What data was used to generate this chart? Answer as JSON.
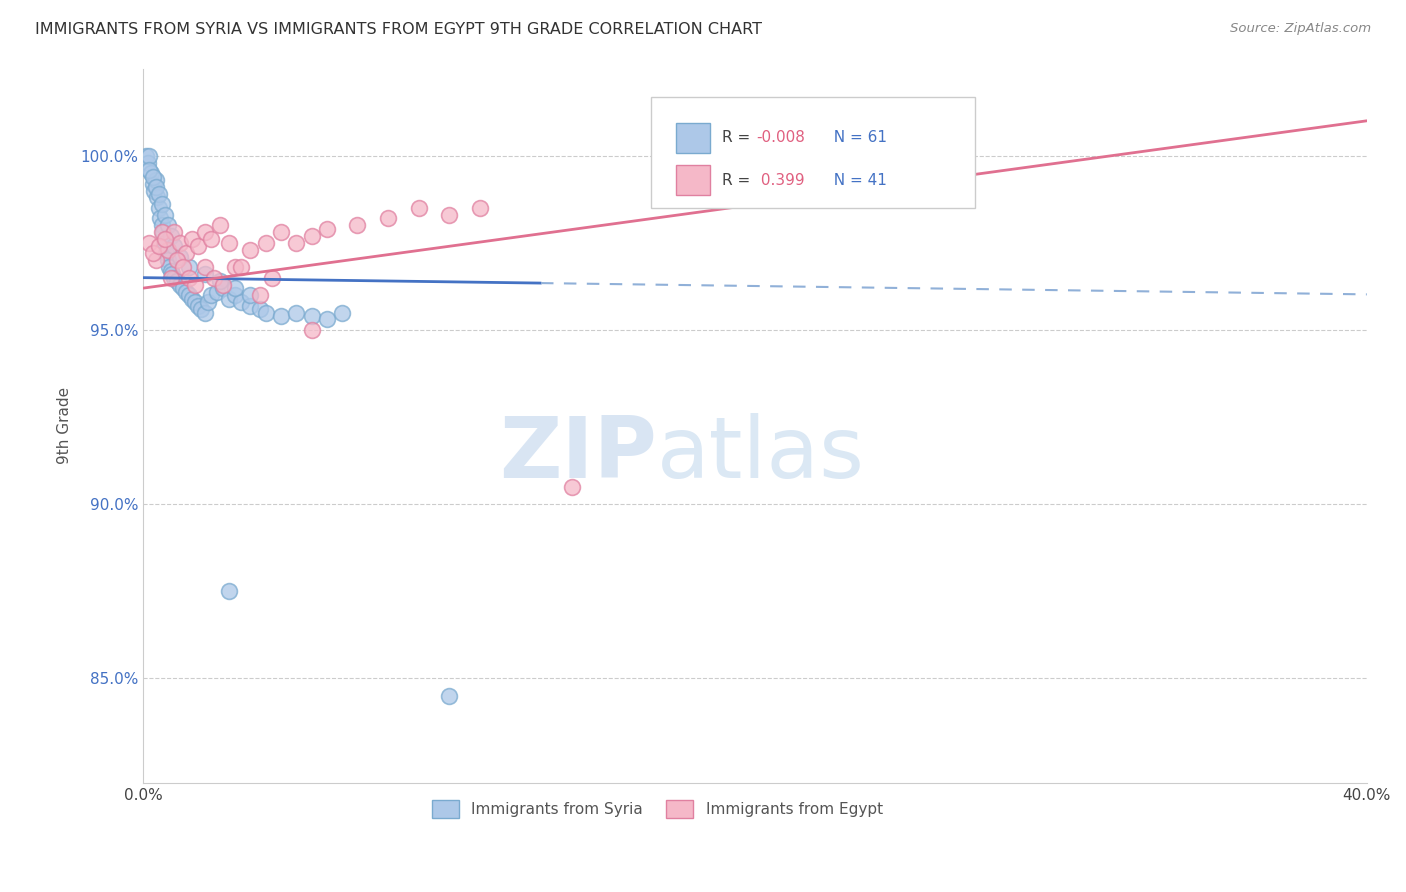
{
  "title": "IMMIGRANTS FROM SYRIA VS IMMIGRANTS FROM EGYPT 9TH GRADE CORRELATION CHART",
  "source": "Source: ZipAtlas.com",
  "ylabel": "9th Grade",
  "xlim": [
    0.0,
    40.0
  ],
  "ylim": [
    82.0,
    102.5
  ],
  "yticks": [
    85.0,
    90.0,
    95.0,
    100.0
  ],
  "xticks": [
    0.0,
    10.0,
    20.0,
    30.0,
    40.0
  ],
  "xtick_labels": [
    "0.0%",
    "",
    "",
    "",
    "40.0%"
  ],
  "syria_color": "#adc8e8",
  "egypt_color": "#f5b8c8",
  "syria_edge": "#7aaacf",
  "egypt_edge": "#e080a0",
  "trend_syria_color": "#4472c4",
  "trend_egypt_color": "#e07090",
  "dashed_line_color": "#90b0d8",
  "legend_syria_label": "Immigrants from Syria",
  "legend_egypt_label": "Immigrants from Egypt",
  "R_syria": -0.008,
  "N_syria": 61,
  "R_egypt": 0.399,
  "N_egypt": 41,
  "syria_x": [
    0.1,
    0.15,
    0.2,
    0.25,
    0.3,
    0.35,
    0.4,
    0.45,
    0.5,
    0.55,
    0.6,
    0.65,
    0.7,
    0.75,
    0.8,
    0.85,
    0.9,
    0.95,
    1.0,
    1.1,
    1.2,
    1.3,
    1.4,
    1.5,
    1.6,
    1.7,
    1.8,
    1.9,
    2.0,
    2.1,
    2.2,
    2.4,
    2.6,
    2.8,
    3.0,
    3.2,
    3.5,
    3.8,
    4.0,
    4.5,
    5.0,
    5.5,
    6.0,
    6.5,
    0.2,
    0.3,
    0.4,
    0.5,
    0.6,
    0.7,
    0.8,
    0.9,
    1.0,
    1.2,
    1.5,
    2.0,
    2.5,
    3.0,
    3.5,
    2.8,
    10.0
  ],
  "syria_y": [
    100.0,
    99.8,
    100.0,
    99.5,
    99.2,
    99.0,
    99.3,
    98.8,
    98.5,
    98.2,
    98.0,
    97.8,
    97.5,
    97.2,
    97.0,
    96.8,
    96.7,
    96.6,
    96.5,
    96.4,
    96.3,
    96.2,
    96.1,
    96.0,
    95.9,
    95.8,
    95.7,
    95.6,
    95.5,
    95.8,
    96.0,
    96.1,
    96.2,
    95.9,
    96.0,
    95.8,
    95.7,
    95.6,
    95.5,
    95.4,
    95.5,
    95.4,
    95.3,
    95.5,
    99.6,
    99.4,
    99.1,
    98.9,
    98.6,
    98.3,
    98.0,
    97.7,
    97.4,
    97.1,
    96.8,
    96.6,
    96.4,
    96.2,
    96.0,
    87.5,
    84.5
  ],
  "egypt_x": [
    0.2,
    0.4,
    0.6,
    0.8,
    1.0,
    1.2,
    1.4,
    1.6,
    1.8,
    2.0,
    2.2,
    2.5,
    2.8,
    3.0,
    3.5,
    4.0,
    4.5,
    5.0,
    5.5,
    6.0,
    7.0,
    8.0,
    9.0,
    10.0,
    11.0,
    0.3,
    0.5,
    0.7,
    0.9,
    1.1,
    1.3,
    1.5,
    1.7,
    2.0,
    2.3,
    2.6,
    3.2,
    3.8,
    4.2,
    5.5,
    14.0
  ],
  "egypt_y": [
    97.5,
    97.0,
    97.8,
    97.3,
    97.8,
    97.5,
    97.2,
    97.6,
    97.4,
    97.8,
    97.6,
    98.0,
    97.5,
    96.8,
    97.3,
    97.5,
    97.8,
    97.5,
    97.7,
    97.9,
    98.0,
    98.2,
    98.5,
    98.3,
    98.5,
    97.2,
    97.4,
    97.6,
    96.5,
    97.0,
    96.8,
    96.5,
    96.3,
    96.8,
    96.5,
    96.3,
    96.8,
    96.0,
    96.5,
    95.0,
    90.5
  ],
  "watermark_zip": "ZIP",
  "watermark_atlas": "atlas",
  "background_color": "#ffffff",
  "grid_color": "#cccccc",
  "solid_end_x": 13.0,
  "trend_syria_y_intercept": 96.5,
  "trend_syria_slope": -0.012,
  "trend_egypt_y_intercept": 96.2,
  "trend_egypt_slope": 0.12
}
